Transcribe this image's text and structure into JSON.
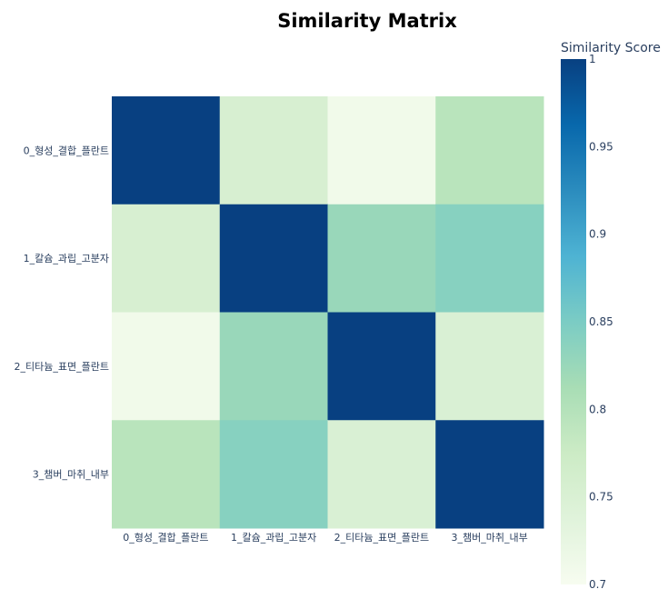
{
  "chart_data": {
    "type": "heatmap",
    "title": "Similarity Matrix",
    "x_labels": [
      "0_형성_결합_플란트",
      "1_칼슘_과립_고분자",
      "2_티타늄_표면_플란트",
      "3_챔버_마취_내부"
    ],
    "y_labels": [
      "0_형성_결합_플란트",
      "1_칼슘_과립_고분자",
      "2_티타늄_표면_플란트",
      "3_챔버_마취_내부"
    ],
    "z": [
      [
        1.0,
        0.755,
        0.71,
        0.795
      ],
      [
        0.755,
        1.0,
        0.825,
        0.84
      ],
      [
        0.71,
        0.825,
        1.0,
        0.75
      ],
      [
        0.795,
        0.84,
        0.75,
        1.0
      ]
    ],
    "colorbar": {
      "title": "Similarity Score",
      "zmin": 0.7,
      "zmax": 1.0,
      "tickvals": [
        0.7,
        0.75,
        0.8,
        0.85,
        0.9,
        0.95,
        1.0
      ],
      "ticktext": [
        "0.7",
        "0.75",
        "0.8",
        "0.85",
        "0.9",
        "0.95",
        "1"
      ]
    },
    "colorscale": [
      [
        0.0,
        "#f7fcf0"
      ],
      [
        0.125,
        "#e0f3db"
      ],
      [
        0.25,
        "#ccebc5"
      ],
      [
        0.375,
        "#a8ddb5"
      ],
      [
        0.5,
        "#7bccc4"
      ],
      [
        0.625,
        "#4eb3d3"
      ],
      [
        0.75,
        "#2b8cbe"
      ],
      [
        0.875,
        "#0868ac"
      ],
      [
        1.0,
        "#084081"
      ]
    ]
  }
}
